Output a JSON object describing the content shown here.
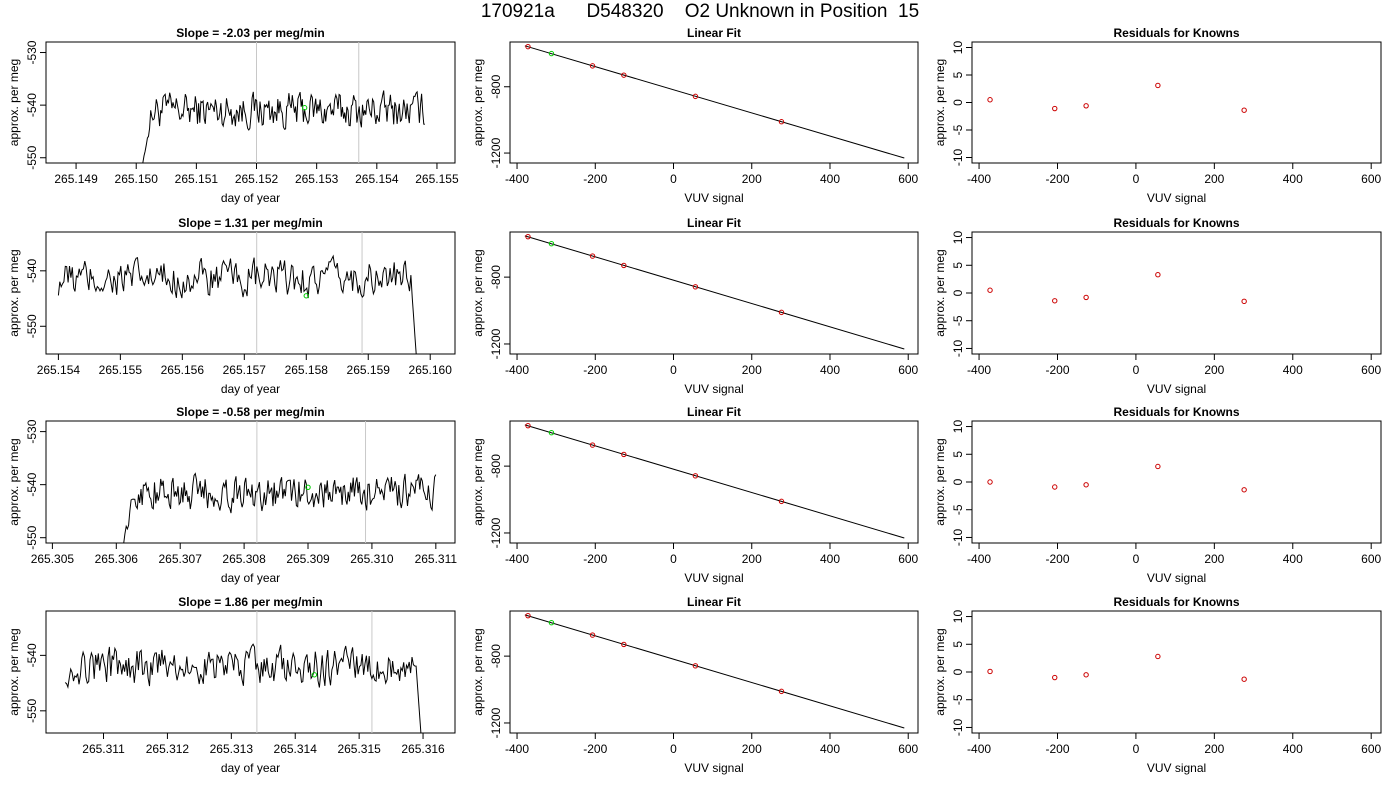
{
  "title": "170921a      D548320    O2 Unknown in Position  15",
  "chart_data": [
    {
      "type": "line",
      "title": "Slope =  -2.03  per meg/min",
      "xlabel": "day of year",
      "ylabel": "approx. per meg",
      "xlim": [
        265.1485,
        265.1553
      ],
      "ylim": [
        -551,
        -528
      ],
      "xticks": [
        "265.149",
        "265.150",
        "265.151",
        "265.152",
        "265.153",
        "265.154",
        "265.155"
      ],
      "yticks": [
        "-550",
        "-540",
        "-530"
      ],
      "vlines": [
        265.152,
        265.1537
      ],
      "x_start": 265.15,
      "x_end": 265.1548,
      "mean": -541,
      "marker": {
        "x": 265.1528,
        "y": -540.5
      },
      "color_line": "#000000",
      "color_vline": "#c8c8c8",
      "color_marker": "#00cc00"
    },
    {
      "type": "scatter+line",
      "title": "Linear Fit",
      "xlabel": "VUV signal",
      "ylabel": "approx. per meg",
      "xlim": [
        -418,
        625
      ],
      "ylim": [
        -1260,
        -530
      ],
      "xticks": [
        "-400",
        "-200",
        "0",
        "200",
        "400",
        "600"
      ],
      "yticks": [
        "-800",
        "-1200"
      ],
      "knowns": {
        "x": [
          -372,
          -207,
          -127,
          56,
          276
        ],
        "y": [
          -558,
          -674,
          -730,
          -858,
          -1011
        ]
      },
      "unknown": {
        "x": -312,
        "y": -600
      },
      "fit_line": {
        "x": [
          -380,
          590
        ],
        "y": [
          -553,
          -1230
        ]
      },
      "color_known": "#cc0000",
      "color_unknown": "#00cc00"
    },
    {
      "type": "scatter",
      "title": "Residuals for Knowns",
      "xlabel": "VUV signal",
      "ylabel": "approx. per meg",
      "xlim": [
        -418,
        625
      ],
      "ylim": [
        -11,
        11
      ],
      "xticks": [
        "-400",
        "-200",
        "0",
        "200",
        "400",
        "600"
      ],
      "yticks": [
        "-10",
        "-5",
        "0",
        "5",
        "10"
      ],
      "points": {
        "x": [
          -372,
          -207,
          -127,
          56,
          276
        ],
        "y": [
          0.5,
          -1.1,
          -0.6,
          3.1,
          -1.4
        ]
      },
      "color_point": "#cc0000"
    },
    {
      "type": "line",
      "title": "Slope =  1.31  per meg/min",
      "xlabel": "day of year",
      "ylabel": "approx. per meg",
      "xlim": [
        265.1538,
        265.1604
      ],
      "ylim": [
        -555,
        -533
      ],
      "xticks": [
        "265.154",
        "265.155",
        "265.156",
        "265.157",
        "265.158",
        "265.159",
        "265.160"
      ],
      "yticks": [
        "-550",
        "-540"
      ],
      "vlines": [
        265.1572,
        265.1589
      ],
      "x_start": 265.154,
      "x_end": 265.1598,
      "mean": -541.5,
      "marker": {
        "x": 265.158,
        "y": -544.5
      },
      "color_line": "#000000",
      "color_vline": "#c8c8c8",
      "color_marker": "#00cc00"
    },
    {
      "type": "scatter+line",
      "title": "Linear Fit",
      "xlabel": "VUV signal",
      "ylabel": "approx. per meg",
      "xlim": [
        -418,
        625
      ],
      "ylim": [
        -1260,
        -530
      ],
      "xticks": [
        "-400",
        "-200",
        "0",
        "200",
        "400",
        "600"
      ],
      "yticks": [
        "-800",
        "-1200"
      ],
      "knowns": {
        "x": [
          -372,
          -207,
          -127,
          56,
          276
        ],
        "y": [
          -558,
          -674,
          -730,
          -858,
          -1011
        ]
      },
      "unknown": {
        "x": -312,
        "y": -600
      },
      "fit_line": {
        "x": [
          -380,
          590
        ],
        "y": [
          -553,
          -1230
        ]
      },
      "color_known": "#cc0000",
      "color_unknown": "#00cc00"
    },
    {
      "type": "scatter",
      "title": "Residuals for Knowns",
      "xlabel": "VUV signal",
      "ylabel": "approx. per meg",
      "xlim": [
        -418,
        625
      ],
      "ylim": [
        -11,
        11
      ],
      "xticks": [
        "-400",
        "-200",
        "0",
        "200",
        "400",
        "600"
      ],
      "yticks": [
        "-10",
        "-5",
        "0",
        "5",
        "10"
      ],
      "points": {
        "x": [
          -372,
          -207,
          -127,
          56,
          276
        ],
        "y": [
          0.5,
          -1.4,
          -0.8,
          3.3,
          -1.5
        ]
      },
      "color_point": "#cc0000"
    },
    {
      "type": "line",
      "title": "Slope =  -0.58  per meg/min",
      "xlabel": "day of year",
      "ylabel": "approx. per meg",
      "xlim": [
        265.3049,
        265.3113
      ],
      "ylim": [
        -551,
        -528
      ],
      "xticks": [
        "265.305",
        "265.306",
        "265.307",
        "265.308",
        "265.309",
        "265.310",
        "265.311"
      ],
      "yticks": [
        "-550",
        "-540",
        "-530"
      ],
      "vlines": [
        265.3082,
        265.3099
      ],
      "x_start": 265.306,
      "x_end": 265.311,
      "mean": -541.5,
      "marker": {
        "x": 265.309,
        "y": -540.5
      },
      "color_line": "#000000",
      "color_vline": "#c8c8c8",
      "color_marker": "#00cc00"
    },
    {
      "type": "scatter+line",
      "title": "Linear Fit",
      "xlabel": "VUV signal",
      "ylabel": "approx. per meg",
      "xlim": [
        -418,
        625
      ],
      "ylim": [
        -1260,
        -530
      ],
      "xticks": [
        "-400",
        "-200",
        "0",
        "200",
        "400",
        "600"
      ],
      "yticks": [
        "-800",
        "-1200"
      ],
      "knowns": {
        "x": [
          -372,
          -207,
          -127,
          56,
          276
        ],
        "y": [
          -558,
          -674,
          -730,
          -858,
          -1011
        ]
      },
      "unknown": {
        "x": -312,
        "y": -600
      },
      "fit_line": {
        "x": [
          -380,
          590
        ],
        "y": [
          -553,
          -1230
        ]
      },
      "color_known": "#cc0000",
      "color_unknown": "#00cc00"
    },
    {
      "type": "scatter",
      "title": "Residuals for Knowns",
      "xlabel": "VUV signal",
      "ylabel": "approx. per meg",
      "xlim": [
        -418,
        625
      ],
      "ylim": [
        -11,
        11
      ],
      "xticks": [
        "-400",
        "-200",
        "0",
        "200",
        "400",
        "600"
      ],
      "yticks": [
        "-10",
        "-5",
        "0",
        "5",
        "10"
      ],
      "points": {
        "x": [
          -372,
          -207,
          -127,
          56,
          276
        ],
        "y": [
          0.0,
          -0.9,
          -0.5,
          2.8,
          -1.4
        ]
      },
      "color_point": "#cc0000"
    },
    {
      "type": "line",
      "title": "Slope =  1.86  per meg/min",
      "xlabel": "day of year",
      "ylabel": "approx. per meg",
      "xlim": [
        265.3101,
        265.3165
      ],
      "ylim": [
        -554,
        -532
      ],
      "xticks": [
        "265.311",
        "265.312",
        "265.313",
        "265.314",
        "265.315",
        "265.316"
      ],
      "yticks": [
        "-550",
        "-540"
      ],
      "vlines": [
        265.3134,
        265.3152
      ],
      "x_start": 265.3104,
      "x_end": 265.316,
      "mean": -542,
      "marker": {
        "x": 265.3143,
        "y": -543.5
      },
      "color_line": "#000000",
      "color_vline": "#c8c8c8",
      "color_marker": "#00cc00"
    },
    {
      "type": "scatter+line",
      "title": "Linear Fit",
      "xlabel": "VUV signal",
      "ylabel": "approx. per meg",
      "xlim": [
        -418,
        625
      ],
      "ylim": [
        -1260,
        -530
      ],
      "xticks": [
        "-400",
        "-200",
        "0",
        "200",
        "400",
        "600"
      ],
      "yticks": [
        "-800",
        "-1200"
      ],
      "knowns": {
        "x": [
          -372,
          -207,
          -127,
          56,
          276
        ],
        "y": [
          -558,
          -674,
          -730,
          -858,
          -1011
        ]
      },
      "unknown": {
        "x": -312,
        "y": -600
      },
      "fit_line": {
        "x": [
          -380,
          590
        ],
        "y": [
          -553,
          -1230
        ]
      },
      "color_known": "#cc0000",
      "color_unknown": "#00cc00"
    },
    {
      "type": "scatter",
      "title": "Residuals for Knowns",
      "xlabel": "VUV signal",
      "ylabel": "approx. per meg",
      "xlim": [
        -418,
        625
      ],
      "ylim": [
        -11,
        11
      ],
      "xticks": [
        "-400",
        "-200",
        "0",
        "200",
        "400",
        "600"
      ],
      "yticks": [
        "-10",
        "-5",
        "0",
        "5",
        "10"
      ],
      "points": {
        "x": [
          -372,
          -207,
          -127,
          56,
          276
        ],
        "y": [
          0.1,
          -1.0,
          -0.5,
          2.8,
          -1.3
        ]
      },
      "color_point": "#cc0000"
    }
  ]
}
